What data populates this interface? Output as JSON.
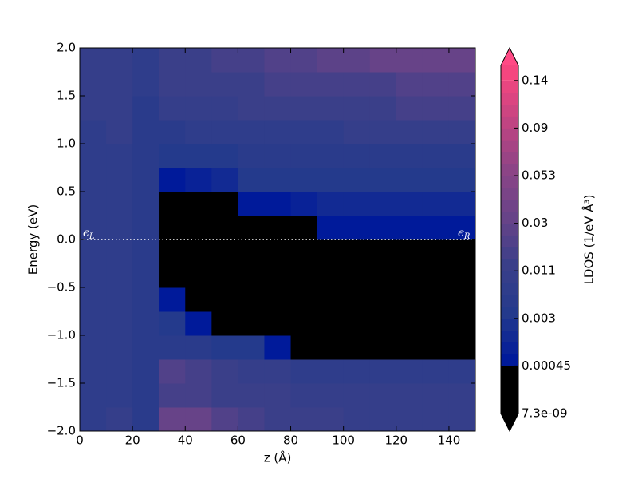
{
  "chart_data": {
    "type": "heatmap",
    "x_label": "z (Å)",
    "y_label": "Energy (eV)",
    "colorbar_label": "LDOS (1/eV Å³)",
    "x": [
      0,
      10,
      20,
      30,
      40,
      50,
      60,
      70,
      80,
      90,
      100,
      110,
      120,
      130,
      140,
      150
    ],
    "y": [
      -2,
      -1.75,
      -1.5,
      -1.25,
      -1,
      -0.75,
      -0.5,
      -0.25,
      0,
      0.25,
      0.5,
      0.75,
      1,
      1.25,
      1.5,
      1.75,
      2
    ],
    "values": [
      [
        0.008,
        0.009,
        0.006,
        0.03,
        0.035,
        0.025,
        0.018,
        0.014,
        0.012,
        0.011,
        0.01,
        0.01,
        0.01,
        0.01,
        0.01
      ],
      [
        0.008,
        0.008,
        0.006,
        0.02,
        0.02,
        0.014,
        0.012,
        0.011,
        0.01,
        0.01,
        0.009,
        0.009,
        0.009,
        0.009,
        0.009
      ],
      [
        0.008,
        0.008,
        0.006,
        0.025,
        0.02,
        0.012,
        0.01,
        0.009,
        0.008,
        0.008,
        0.008,
        0.008,
        0.008,
        0.008,
        0.008
      ],
      [
        0.007,
        0.008,
        0.006,
        0.006,
        0.005,
        0.004,
        0.003,
        0.0008,
        1e-06,
        1e-06,
        1e-06,
        1e-06,
        1e-06,
        1e-06,
        1e-06
      ],
      [
        0.007,
        0.008,
        0.005,
        0.004,
        0.0008,
        1e-06,
        1e-06,
        1e-06,
        1e-06,
        1e-06,
        1e-06,
        1e-06,
        1e-06,
        1e-06,
        1e-06
      ],
      [
        0.007,
        0.008,
        0.005,
        0.0006,
        1e-06,
        1e-06,
        1e-06,
        1e-06,
        1e-06,
        1e-06,
        1e-06,
        1e-06,
        1e-06,
        1e-06,
        1e-06
      ],
      [
        0.007,
        0.008,
        0.005,
        1e-06,
        1e-06,
        1e-06,
        1e-06,
        1e-06,
        1e-06,
        1e-06,
        1e-06,
        1e-06,
        1e-06,
        1e-06,
        1e-06
      ],
      [
        0.007,
        0.008,
        0.005,
        1e-06,
        1e-06,
        1e-06,
        1e-06,
        1e-06,
        1e-06,
        1e-06,
        1e-06,
        1e-06,
        1e-06,
        1e-06,
        1e-06
      ],
      [
        0.007,
        0.008,
        0.005,
        1e-06,
        1e-06,
        1e-06,
        1e-06,
        1e-06,
        1e-06,
        0.0006,
        0.0008,
        0.001,
        0.001,
        0.001,
        0.001
      ],
      [
        0.007,
        0.008,
        0.005,
        1e-06,
        1e-06,
        1e-06,
        0.0007,
        0.001,
        0.0015,
        0.002,
        0.002,
        0.002,
        0.002,
        0.002,
        0.002
      ],
      [
        0.007,
        0.008,
        0.005,
        0.0006,
        0.0015,
        0.002,
        0.003,
        0.003,
        0.003,
        0.004,
        0.004,
        0.004,
        0.004,
        0.004,
        0.004
      ],
      [
        0.008,
        0.008,
        0.005,
        0.003,
        0.004,
        0.004,
        0.005,
        0.005,
        0.005,
        0.005,
        0.006,
        0.006,
        0.006,
        0.006,
        0.006
      ],
      [
        0.008,
        0.009,
        0.006,
        0.006,
        0.007,
        0.007,
        0.008,
        0.008,
        0.008,
        0.008,
        0.009,
        0.009,
        0.009,
        0.01,
        0.01
      ],
      [
        0.009,
        0.009,
        0.006,
        0.009,
        0.01,
        0.01,
        0.011,
        0.012,
        0.012,
        0.013,
        0.014,
        0.015,
        0.016,
        0.017,
        0.018
      ],
      [
        0.009,
        0.01,
        0.007,
        0.011,
        0.012,
        0.013,
        0.015,
        0.016,
        0.018,
        0.019,
        0.02,
        0.02,
        0.021,
        0.021,
        0.022
      ],
      [
        0.01,
        0.01,
        0.007,
        0.012,
        0.015,
        0.018,
        0.02,
        0.022,
        0.025,
        0.026,
        0.028,
        0.03,
        0.03,
        0.03,
        0.03
      ]
    ],
    "xlim": [
      0,
      150
    ],
    "ylim": [
      -2,
      2
    ],
    "xticks": [
      0,
      20,
      40,
      60,
      80,
      100,
      120,
      140
    ],
    "yticks": [
      {
        "value": -2,
        "label": "−2.0"
      },
      {
        "value": -1.5,
        "label": "−1.5"
      },
      {
        "value": -1,
        "label": "−1.0"
      },
      {
        "value": -0.5,
        "label": "−0.5"
      },
      {
        "value": 0,
        "label": "0.0"
      },
      {
        "value": 0.5,
        "label": "0.5"
      },
      {
        "value": 1,
        "label": "1.0"
      },
      {
        "value": 1.5,
        "label": "1.5"
      },
      {
        "value": 2,
        "label": "2.0"
      }
    ],
    "cticks": [
      {
        "value": 7.3e-09,
        "label": "7.3e-09"
      },
      0.00045,
      0.003,
      0.011,
      0.03,
      0.053,
      0.09,
      0.14
    ],
    "under_color": "#000000",
    "over_color": "#ff4a85",
    "color_stops": [
      "#000000",
      "#001a9a",
      "#243a8c",
      "#3a3f89",
      "#674388",
      "#8c4486",
      "#c04482",
      "#f5467f"
    ],
    "reference_line": 0,
    "annotations": [
      {
        "text": "ϵ",
        "sub": "L"
      },
      {
        "text": "ϵ",
        "sub": "R"
      }
    ]
  }
}
